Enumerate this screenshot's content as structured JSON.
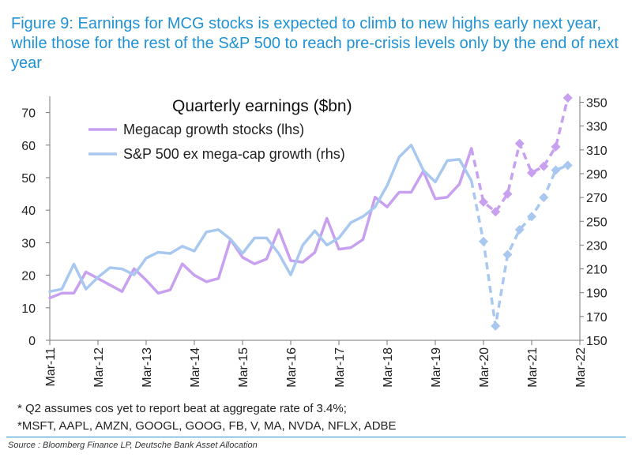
{
  "figure_title": "Figure 9: Earnings for MCG stocks is expected to climb to new highs early next year, while those for the rest of the S&P 500 to reach pre-crisis levels only by the end of next year",
  "notes": [
    "* Q2 assumes cos yet to report beat at aggregate rate of 3.4%;",
    "*MSFT, AAPL, AMZN, GOOGL, GOOG, FB, V, MA, NVDA, NFLX, ADBE"
  ],
  "source": "Source : Bloomberg Finance LP, Deutsche Bank Asset Allocation",
  "chart_data": {
    "type": "line",
    "title": "Quarterly earnings ($bn)",
    "x_tick_labels": [
      "Mar-11",
      "Mar-12",
      "Mar-13",
      "Mar-14",
      "Mar-15",
      "Mar-16",
      "Mar-17",
      "Mar-18",
      "Mar-19",
      "Mar-20",
      "Mar-21",
      "Mar-22"
    ],
    "x": [
      "Mar-11",
      "Jun-11",
      "Sep-11",
      "Dec-11",
      "Mar-12",
      "Jun-12",
      "Sep-12",
      "Dec-12",
      "Mar-13",
      "Jun-13",
      "Sep-13",
      "Dec-13",
      "Mar-14",
      "Jun-14",
      "Sep-14",
      "Dec-14",
      "Mar-15",
      "Jun-15",
      "Sep-15",
      "Dec-15",
      "Mar-16",
      "Jun-16",
      "Sep-16",
      "Dec-16",
      "Mar-17",
      "Jun-17",
      "Sep-17",
      "Dec-17",
      "Mar-18",
      "Jun-18",
      "Sep-18",
      "Dec-18",
      "Mar-19",
      "Jun-19",
      "Sep-19",
      "Dec-19",
      "Mar-20",
      "Jun-20",
      "Sep-20",
      "Dec-20",
      "Mar-21",
      "Jun-21",
      "Sep-21",
      "Dec-21"
    ],
    "y_left_ticks": [
      0,
      10,
      20,
      30,
      40,
      50,
      60,
      70
    ],
    "y_right_ticks": [
      150,
      170,
      190,
      210,
      230,
      250,
      270,
      290,
      310,
      330,
      350
    ],
    "ylim_left": [
      0,
      75
    ],
    "ylim_right": [
      150,
      355
    ],
    "grid": false,
    "legend_position": "top-left",
    "series": [
      {
        "name": "Megacap growth stocks (lhs)",
        "axis": "left",
        "color": "#c8a0f0",
        "values": [
          13,
          14.5,
          14.5,
          21,
          19,
          17,
          15,
          22,
          18.5,
          14.5,
          15.5,
          23.5,
          20,
          18,
          19,
          31,
          25.5,
          23.5,
          25,
          34,
          24.5,
          24,
          27,
          37.5,
          28,
          28.5,
          31,
          44,
          41,
          45.5,
          45.5,
          52,
          43.5,
          44,
          48,
          59,
          42.5,
          39.5,
          45,
          60.5,
          51.5,
          53.5,
          59.5,
          74.5
        ],
        "dashed_from_index": 36
      },
      {
        "name": "S&P 500 ex mega-cap growth (rhs)",
        "axis": "right",
        "color": "#a8c8f0",
        "values": [
          191,
          193,
          214,
          193,
          203,
          211,
          210,
          205,
          219,
          224,
          223,
          229,
          225,
          241,
          243,
          235,
          223,
          236,
          236,
          223,
          205,
          230,
          242,
          230,
          236,
          249,
          254,
          262,
          280,
          304,
          314,
          293,
          283,
          301,
          302,
          284,
          233,
          162,
          222,
          243,
          254,
          270,
          293,
          297
        ],
        "dashed_from_index": 36
      }
    ]
  }
}
